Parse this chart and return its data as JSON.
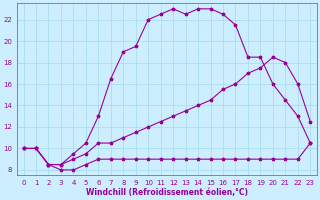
{
  "xlabel": "Windchill (Refroidissement éolien,°C)",
  "background_color": "#cceeff",
  "grid_color": "#aaddee",
  "line_color": "#990099",
  "xlim": [
    -0.5,
    23.5
  ],
  "ylim": [
    7.5,
    23.5
  ],
  "xticks": [
    0,
    1,
    2,
    3,
    4,
    5,
    6,
    7,
    8,
    9,
    10,
    11,
    12,
    13,
    14,
    15,
    16,
    17,
    18,
    19,
    20,
    21,
    22,
    23
  ],
  "yticks": [
    8,
    10,
    12,
    14,
    16,
    18,
    20,
    22
  ],
  "line1_x": [
    0,
    1,
    2,
    3,
    4,
    5,
    6,
    7,
    8,
    9,
    10,
    11,
    12,
    13,
    14,
    15,
    16,
    17,
    18,
    19,
    20,
    21,
    22,
    23
  ],
  "line1_y": [
    10,
    10,
    8.5,
    8,
    8,
    8.5,
    9,
    9,
    9,
    9,
    9,
    9,
    9,
    9,
    9,
    9,
    9,
    9,
    9,
    9,
    9,
    9,
    9,
    10.5
  ],
  "line2_x": [
    0,
    1,
    2,
    3,
    4,
    5,
    6,
    7,
    8,
    9,
    10,
    11,
    12,
    13,
    14,
    15,
    16,
    17,
    18,
    19,
    20,
    21,
    22,
    23
  ],
  "line2_y": [
    10,
    10,
    8.5,
    8.5,
    9,
    9.5,
    10.5,
    10.5,
    11,
    11.5,
    12,
    12.5,
    13,
    13.5,
    14,
    14.5,
    15.5,
    16,
    17,
    17.5,
    18.5,
    18,
    16,
    12.5
  ],
  "line3_x": [
    0,
    1,
    2,
    3,
    4,
    5,
    6,
    7,
    8,
    9,
    10,
    11,
    12,
    13,
    14,
    15,
    16,
    17,
    18,
    19,
    20,
    21,
    22,
    23
  ],
  "line3_y": [
    10,
    10,
    8.5,
    8.5,
    9.5,
    10.5,
    13,
    16.5,
    19,
    19.5,
    22,
    22.5,
    23,
    22.5,
    23,
    23,
    22.5,
    21.5,
    18.5,
    18.5,
    16,
    14.5,
    13,
    10.5
  ],
  "spine_color": "#777777",
  "xlabel_fontsize": 5.5,
  "tick_fontsize": 5.0,
  "linewidth": 0.8,
  "markersize": 2.5
}
